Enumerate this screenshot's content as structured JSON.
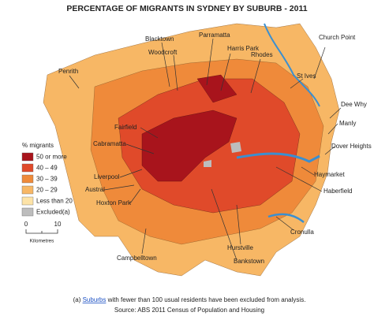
{
  "title": "PERCENTAGE OF MIGRANTS IN SYDNEY BY SUBURB - 2011",
  "legend": {
    "title": "% migrants",
    "items": [
      {
        "label": "50 or more",
        "color": "#a8141c"
      },
      {
        "label": "40 – 49",
        "color": "#e04a2a"
      },
      {
        "label": "30 – 39",
        "color": "#ef8a3a"
      },
      {
        "label": "20 – 29",
        "color": "#f7b765"
      },
      {
        "label": "Less than 20",
        "color": "#fde3a7"
      },
      {
        "label": "Excluded(a)",
        "color": "#bdbdbd"
      }
    ]
  },
  "scale": {
    "start": 0,
    "end": 10,
    "unit": "Kilometres"
  },
  "places": [
    "Penrith",
    "Blacktown",
    "Woodcroft",
    "Parramatta",
    "Harris Park",
    "Rhodes",
    "St Ives",
    "Church Point",
    "Dee Why",
    "Manly",
    "Dover Heights",
    "Haymarket",
    "Haberfield",
    "Fairfield",
    "Cabramatta",
    "Liverpool",
    "Austral",
    "Hoxton Park",
    "Campbelltown",
    "Hurstville",
    "Bankstown",
    "Cronulla"
  ],
  "footnote": {
    "prefix": "(a) ",
    "link": "Suburbs",
    "rest": " with fewer than 100 usual residents have been excluded from analysis."
  },
  "source": "Source: ABS 2011 Census of Population and Housing"
}
